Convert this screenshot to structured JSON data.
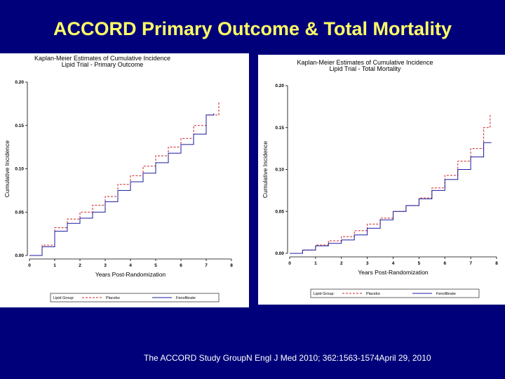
{
  "slide": {
    "title": "ACCORD Primary Outcome & Total Mortality",
    "citation": "The ACCORD Study GroupN Engl J Med 2010; 362:1563-1574April 29, 2010"
  },
  "colors": {
    "background": "#00007a",
    "title": "#ffff66",
    "placebo": "#cc2222",
    "fenofibrate": "#1a1aa0"
  },
  "chart_data": [
    {
      "type": "line",
      "title_line1": "Kaplan-Meier Estimates of Cumulative Incidence",
      "title_line2": "Lipid Trial - Primary Outcome",
      "xlabel": "Years Post-Randomization",
      "ylabel": "Cumulative Incidence",
      "xlim": [
        0,
        8
      ],
      "ylim": [
        0,
        0.2
      ],
      "xticks": [
        "0",
        "1",
        "2",
        "3",
        "4",
        "5",
        "6",
        "7",
        "8"
      ],
      "yticks": [
        "0.00",
        "0.05",
        "0.10",
        "0.15",
        "0.20"
      ],
      "legend_title": "Lipid Group:",
      "legend_position": "bottom",
      "series": [
        {
          "name": "Placebo",
          "style": "dashed",
          "x": [
            0,
            0.5,
            1,
            1.5,
            2,
            2.5,
            3,
            3.5,
            4,
            4.5,
            5,
            5.5,
            6,
            6.5,
            7,
            7.5
          ],
          "y": [
            0,
            0.012,
            0.032,
            0.042,
            0.05,
            0.058,
            0.068,
            0.082,
            0.092,
            0.103,
            0.115,
            0.125,
            0.135,
            0.15,
            0.162,
            0.177
          ]
        },
        {
          "name": "Fenofibrate",
          "style": "solid",
          "x": [
            0,
            0.5,
            1,
            1.5,
            2,
            2.5,
            3,
            3.5,
            4,
            4.5,
            5,
            5.5,
            6,
            6.5,
            7,
            7.3
          ],
          "y": [
            0,
            0.01,
            0.028,
            0.037,
            0.043,
            0.05,
            0.062,
            0.075,
            0.085,
            0.095,
            0.107,
            0.118,
            0.128,
            0.14,
            0.162,
            0.164
          ]
        }
      ]
    },
    {
      "type": "line",
      "title_line1": "Kaplan-Meier Estimates of Cumulative Incidence",
      "title_line2": "Lipid Trial - Total Mortality",
      "xlabel": "Years Post-Randomization",
      "ylabel": "Cumulative Incidence",
      "xlim": [
        0,
        8
      ],
      "ylim": [
        0,
        0.2
      ],
      "xticks": [
        "0",
        "1",
        "2",
        "3",
        "4",
        "5",
        "6",
        "7",
        "8"
      ],
      "yticks": [
        "0.00",
        "0.05",
        "0.10",
        "0.15",
        "0.20"
      ],
      "legend_title": "Lipid Group:",
      "legend_position": "bottom",
      "series": [
        {
          "name": "Placebo",
          "style": "dashed",
          "x": [
            0,
            0.5,
            1,
            1.5,
            2,
            2.5,
            3,
            3.5,
            4,
            4.5,
            5,
            5.5,
            6,
            6.5,
            7,
            7.5,
            7.75
          ],
          "y": [
            0,
            0.004,
            0.01,
            0.015,
            0.02,
            0.027,
            0.035,
            0.042,
            0.05,
            0.057,
            0.066,
            0.078,
            0.093,
            0.11,
            0.125,
            0.15,
            0.165
          ]
        },
        {
          "name": "Fenofibrate",
          "style": "solid",
          "x": [
            0,
            0.5,
            1,
            1.5,
            2,
            2.5,
            3,
            3.5,
            4,
            4.5,
            5,
            5.5,
            6,
            6.5,
            7,
            7.5,
            7.8
          ],
          "y": [
            0,
            0.004,
            0.009,
            0.012,
            0.016,
            0.022,
            0.03,
            0.04,
            0.05,
            0.057,
            0.065,
            0.075,
            0.088,
            0.1,
            0.115,
            0.132,
            0.132
          ]
        }
      ]
    }
  ]
}
